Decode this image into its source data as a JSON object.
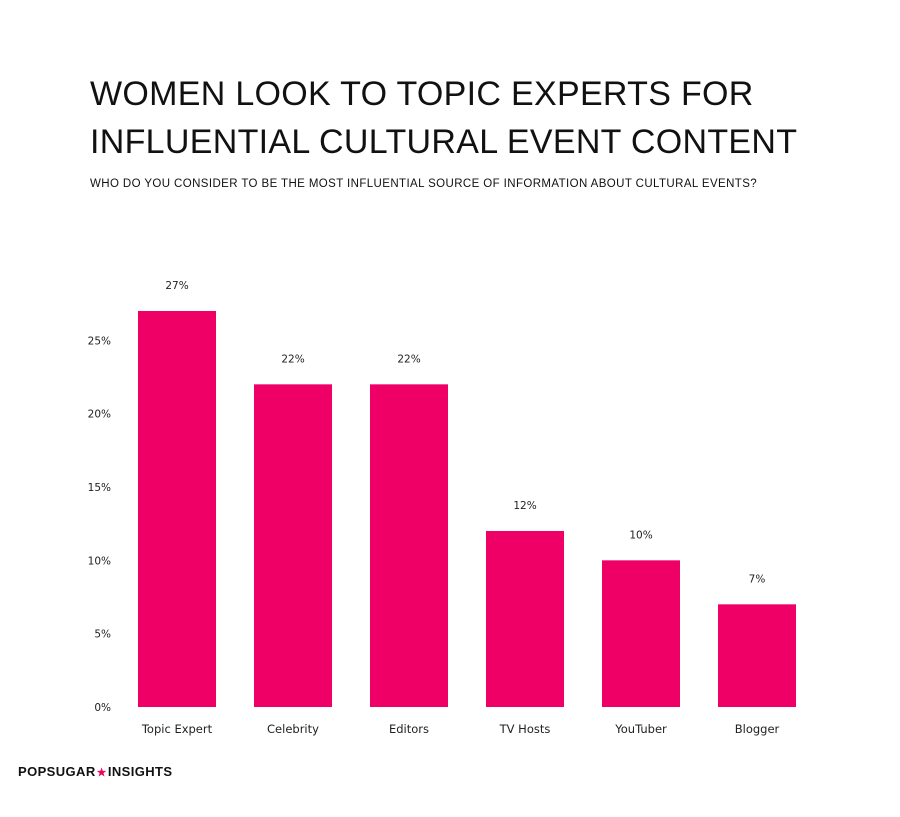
{
  "header": {
    "title_line1": "WOMEN LOOK TO TOPIC EXPERTS FOR",
    "title_line2": "INFLUENTIAL CULTURAL EVENT CONTENT",
    "subtitle": "WHO DO YOU CONSIDER TO BE THE MOST INFLUENTIAL SOURCE OF INFORMATION ABOUT CULTURAL EVENTS?"
  },
  "brand": {
    "part1": "POPSUGAR",
    "separator": "★",
    "part2": "INSIGHTS",
    "accent_color": "#e8045f"
  },
  "chart_data": {
    "type": "bar",
    "title": "WOMEN LOOK TO TOPIC EXPERTS FOR INFLUENTIAL CULTURAL EVENT CONTENT",
    "subtitle": "WHO DO YOU CONSIDER TO BE THE MOST INFLUENTIAL SOURCE OF INFORMATION ABOUT CULTURAL EVENTS?",
    "categories": [
      "Topic Expert",
      "Celebrity",
      "Editors",
      "TV Hosts",
      "YouTuber",
      "Blogger"
    ],
    "values": [
      27,
      22,
      22,
      12,
      10,
      7
    ],
    "data_labels": [
      "27%",
      "22%",
      "22%",
      "12%",
      "10%",
      "7%"
    ],
    "xlabel": "",
    "ylabel": "",
    "ylim": [
      0,
      27
    ],
    "yticks": [
      0,
      5,
      10,
      15,
      20,
      25
    ],
    "ytick_labels": [
      "0%",
      "5%",
      "10%",
      "15%",
      "20%",
      "25%"
    ],
    "bar_color": "#ee0066",
    "grid": false,
    "legend": "none"
  }
}
